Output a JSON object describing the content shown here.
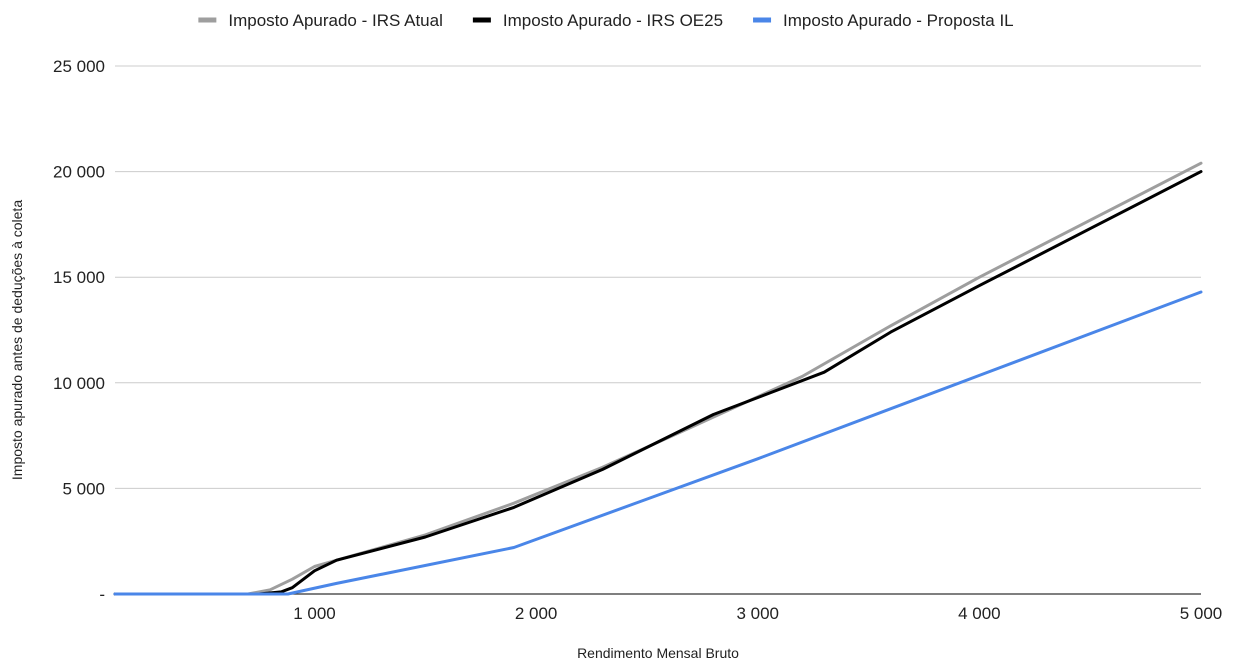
{
  "chart_data": {
    "type": "line",
    "title": "",
    "xlabel": "Rendimento Mensal Bruto",
    "ylabel": "Imposto apurado antes de deduções à coleta",
    "xlim": [
      100,
      5000
    ],
    "ylim": [
      0,
      25000
    ],
    "grid": true,
    "legend_position": "top",
    "x_ticks": [
      1000,
      2000,
      3000,
      4000,
      5000
    ],
    "x_tick_labels": [
      "1 000",
      "2 000",
      "3 000",
      "4 000",
      "5 000"
    ],
    "y_ticks": [
      0,
      5000,
      10000,
      15000,
      20000,
      25000
    ],
    "y_tick_labels": [
      "-",
      "5 000",
      "10 000",
      "15 000",
      "20 000",
      "25 000"
    ],
    "series": [
      {
        "name": "Imposto Apurado - IRS Atual",
        "color": "#9e9e9e",
        "points": [
          [
            100,
            0
          ],
          [
            700,
            0
          ],
          [
            800,
            200
          ],
          [
            900,
            700
          ],
          [
            1000,
            1300
          ],
          [
            1100,
            1600
          ],
          [
            1500,
            2800
          ],
          [
            1900,
            4300
          ],
          [
            2300,
            6000
          ],
          [
            2700,
            7900
          ],
          [
            3200,
            10300
          ],
          [
            3600,
            12700
          ],
          [
            4000,
            15000
          ],
          [
            4500,
            17700
          ],
          [
            5000,
            20400
          ]
        ]
      },
      {
        "name": "Imposto Apurado - IRS OE25",
        "color": "#000000",
        "points": [
          [
            100,
            0
          ],
          [
            750,
            0
          ],
          [
            850,
            100
          ],
          [
            900,
            300
          ],
          [
            1000,
            1100
          ],
          [
            1100,
            1600
          ],
          [
            1500,
            2700
          ],
          [
            1900,
            4100
          ],
          [
            2300,
            5900
          ],
          [
            2800,
            8500
          ],
          [
            3300,
            10500
          ],
          [
            3600,
            12400
          ],
          [
            4000,
            14600
          ],
          [
            4500,
            17300
          ],
          [
            5000,
            20000
          ]
        ]
      },
      {
        "name": "Imposto Apurado - Proposta IL",
        "color": "#4a86e8",
        "points": [
          [
            100,
            0
          ],
          [
            880,
            0
          ],
          [
            1100,
            500
          ],
          [
            1900,
            2200
          ],
          [
            3000,
            6400
          ],
          [
            4000,
            10350
          ],
          [
            5000,
            14300
          ]
        ]
      }
    ]
  }
}
